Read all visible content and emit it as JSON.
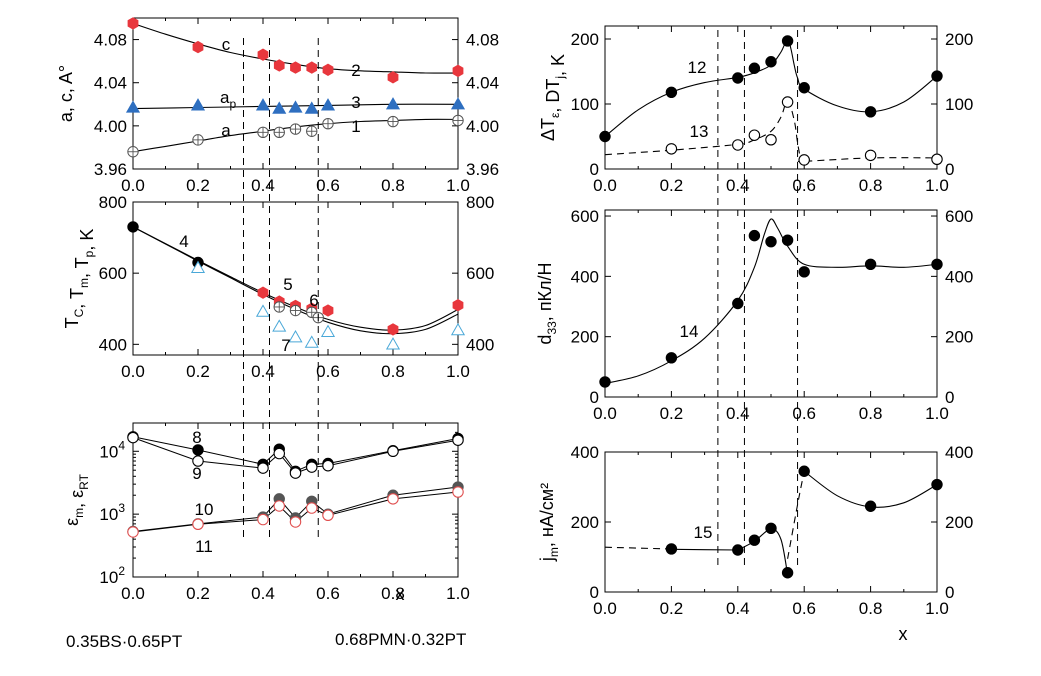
{
  "colors": {
    "red": "#e8373d",
    "blue": "#2e6fc0",
    "black": "#000000",
    "gray": "#555555",
    "hollow_red": "#e05050",
    "hollow_blue": "#4aa8d8"
  },
  "captions": {
    "left_composition": "0.35BS·0.65PT",
    "right_composition": "0.68PMN·0.32PT"
  },
  "boundaries": {
    "left_x": [
      0.34,
      0.42,
      0.57
    ],
    "right_x": [
      0.34,
      0.42,
      0.58
    ]
  },
  "chart_data": [
    {
      "id": "lattice",
      "type": "scatter",
      "ylabel": "a, c, A°",
      "xlim": [
        0,
        1
      ],
      "ylim": [
        3.96,
        4.1
      ],
      "x_ticks": [
        "0.0",
        "0.2",
        "0.4",
        "0.6",
        "0.8",
        "1.0"
      ],
      "y_ticks": [
        {
          "value": 3.96,
          "label": "3.96"
        },
        {
          "value": 4.0,
          "label": "4.00"
        },
        {
          "value": 4.04,
          "label": "4.04"
        },
        {
          "value": 4.08,
          "label": "4.08"
        }
      ],
      "series": [
        {
          "name": "c",
          "number": "2",
          "marker": "filled-hexagon",
          "color": "#e8373d",
          "x": [
            0.0,
            0.2,
            0.4,
            0.45,
            0.5,
            0.55,
            0.6,
            0.8,
            1.0
          ],
          "y": [
            4.095,
            4.073,
            4.066,
            4.056,
            4.054,
            4.054,
            4.052,
            4.045,
            4.051
          ],
          "curve_x": [
            0.0,
            0.1,
            0.2,
            0.3,
            0.4,
            0.5,
            0.6,
            0.7,
            0.8,
            0.9,
            1.0
          ],
          "curve_y": [
            4.095,
            4.085,
            4.076,
            4.068,
            4.062,
            4.057,
            4.053,
            4.051,
            4.05,
            4.049,
            4.049
          ]
        },
        {
          "name": "a_p",
          "label_main": "a",
          "label_sub": "p",
          "number": "3",
          "marker": "filled-triangle",
          "color": "#2e6fc0",
          "x": [
            0.0,
            0.2,
            0.4,
            0.45,
            0.5,
            0.55,
            0.6,
            0.8,
            1.0
          ],
          "y": [
            4.017,
            4.019,
            4.019,
            4.016,
            4.017,
            4.016,
            4.019,
            4.02,
            4.02
          ],
          "curve_x": [
            0.0,
            0.2,
            0.4,
            0.6,
            0.8,
            1.0
          ],
          "curve_y": [
            4.016,
            4.017,
            4.018,
            4.019,
            4.02,
            4.02
          ]
        },
        {
          "name": "a",
          "label_main": "a",
          "number": "1",
          "marker": "hollow-crossed-circle",
          "color": "#555555",
          "x": [
            0.0,
            0.2,
            0.4,
            0.45,
            0.5,
            0.55,
            0.6,
            0.8,
            1.0
          ],
          "y": [
            3.976,
            3.987,
            3.994,
            3.994,
            3.997,
            3.995,
            4.002,
            4.004,
            4.005
          ],
          "curve_x": [
            0.0,
            0.1,
            0.2,
            0.3,
            0.4,
            0.5,
            0.6,
            0.7,
            0.8,
            0.9,
            1.0
          ],
          "curve_y": [
            3.976,
            3.981,
            3.986,
            3.991,
            3.995,
            3.999,
            4.002,
            4.004,
            4.005,
            4.006,
            4.006
          ]
        }
      ]
    },
    {
      "id": "temperature",
      "type": "scatter",
      "ylabel": "T_C, T_m, T_p, K",
      "xlim": [
        0,
        1
      ],
      "ylim": [
        370,
        800
      ],
      "x_ticks": [
        "0.0",
        "0.2",
        "0.4",
        "0.6",
        "0.8",
        "1.0"
      ],
      "y_ticks": [
        {
          "value": 400,
          "label": "400"
        },
        {
          "value": 600,
          "label": "600"
        },
        {
          "value": 800,
          "label": "800"
        }
      ],
      "series": [
        {
          "name": "T_C",
          "number": "4",
          "marker": "filled-circle",
          "color": "#000000",
          "x": [
            0.0,
            0.2
          ],
          "y": [
            730,
            630
          ]
        },
        {
          "name": "T_m",
          "number": "5",
          "marker": "filled-hexagon",
          "color": "#e8373d",
          "x": [
            0.4,
            0.45,
            0.5,
            0.55,
            0.6,
            0.8,
            1.0
          ],
          "y": [
            545,
            520,
            508,
            500,
            495,
            442,
            510
          ]
        },
        {
          "name": "T_m(hollow)",
          "number": "6",
          "marker": "hollow-crossed-circle",
          "color": "#555555",
          "x": [
            0.45,
            0.5,
            0.55,
            0.57
          ],
          "y": [
            505,
            495,
            490,
            475
          ]
        },
        {
          "name": "T_p",
          "number": "7",
          "marker": "hollow-triangle",
          "color": "#4aa8d8",
          "x": [
            0.2,
            0.4,
            0.45,
            0.5,
            0.55,
            0.6,
            0.8,
            1.0
          ],
          "y": [
            615,
            492,
            450,
            420,
            405,
            435,
            400,
            440
          ]
        }
      ],
      "curves": [
        {
          "x": [
            0.0,
            0.1,
            0.2,
            0.3,
            0.4,
            0.5,
            0.6,
            0.7,
            0.8,
            0.9,
            1.0
          ],
          "y": [
            730,
            683,
            636,
            590,
            545,
            505,
            470,
            448,
            440,
            453,
            498
          ]
        },
        {
          "x": [
            0.0,
            0.1,
            0.2,
            0.3,
            0.4,
            0.5,
            0.6,
            0.7,
            0.8,
            0.9,
            1.0
          ],
          "y": [
            730,
            682,
            634,
            587,
            540,
            498,
            462,
            438,
            430,
            442,
            485
          ]
        }
      ]
    },
    {
      "id": "permittivity",
      "type": "scatter",
      "ylabel": "ε_m, ε_RT",
      "yscale": "log",
      "xlim": [
        0,
        1
      ],
      "ylim_log10": [
        2,
        4.45
      ],
      "x_ticks": [
        "0.0",
        "0.2",
        "0.4",
        "0.6",
        "0.8",
        "1.0"
      ],
      "y_ticks": [
        {
          "exp": 2,
          "label": "10"
        },
        {
          "exp": 3,
          "label": "10"
        },
        {
          "exp": 4,
          "label": "10"
        }
      ],
      "series": [
        {
          "name": "ε_m(1)",
          "number": "8",
          "marker": "filled-circle",
          "color": "#000000",
          "x": [
            0.0,
            0.2,
            0.4,
            0.45,
            0.5,
            0.55,
            0.6,
            0.8,
            1.0
          ],
          "y": [
            17000,
            10500,
            6200,
            10800,
            4800,
            6200,
            6400,
            10200,
            16000
          ]
        },
        {
          "name": "ε_RT(1)",
          "number": "9",
          "marker": "hollow-circle",
          "color": "#000000",
          "x": [
            0.0,
            0.2,
            0.4,
            0.45,
            0.5,
            0.55,
            0.6,
            0.8,
            1.0
          ],
          "y": [
            16500,
            7000,
            5400,
            9200,
            4500,
            5600,
            5900,
            10000,
            15000
          ]
        },
        {
          "name": "ε_m(2)",
          "number": "10",
          "marker": "filled-circle",
          "color": "#555555",
          "x": [
            0.0,
            0.2,
            0.4,
            0.45,
            0.5,
            0.55,
            0.6,
            0.8,
            1.0
          ],
          "y": [
            530,
            700,
            900,
            1750,
            870,
            1600,
            1000,
            2000,
            2700
          ]
        },
        {
          "name": "ε_RT(2)",
          "number": "11",
          "marker": "hollow-circle",
          "color": "#e05050",
          "x": [
            0.0,
            0.2,
            0.4,
            0.45,
            0.5,
            0.55,
            0.6,
            0.8,
            1.0
          ],
          "y": [
            520,
            690,
            820,
            1350,
            750,
            1250,
            960,
            1750,
            2250
          ]
        }
      ]
    },
    {
      "id": "delta_t",
      "type": "scatter",
      "ylabel": "ΔT_ε, DT_j, K",
      "xlim": [
        0,
        1
      ],
      "ylim": [
        0,
        220
      ],
      "x_ticks": [
        "0.0",
        "0.2",
        "0.4",
        "0.6",
        "0.8",
        "1.0"
      ],
      "y_ticks": [
        {
          "value": 0,
          "label": "0"
        },
        {
          "value": 100,
          "label": "100"
        },
        {
          "value": 200,
          "label": "200"
        }
      ],
      "series": [
        {
          "name": "ΔT_ε",
          "number": "12",
          "marker": "filled-circle",
          "color": "#000000",
          "x": [
            0.0,
            0.2,
            0.4,
            0.45,
            0.5,
            0.55,
            0.6,
            0.8,
            1.0
          ],
          "y": [
            50,
            118,
            140,
            155,
            165,
            197,
            125,
            88,
            143
          ],
          "curve_x": [
            0.0,
            0.1,
            0.2,
            0.3,
            0.4,
            0.45,
            0.5,
            0.53,
            0.55,
            0.56,
            0.57,
            0.58,
            0.6,
            0.7,
            0.8,
            0.9,
            1.0
          ],
          "curve_y": [
            50,
            91,
            118,
            133,
            141,
            148,
            160,
            180,
            200,
            185,
            160,
            140,
            123,
            97,
            88,
            103,
            143
          ]
        },
        {
          "name": "DT_j",
          "number": "13",
          "marker": "hollow-circle",
          "color": "#000000",
          "x": [
            0.2,
            0.4,
            0.45,
            0.5,
            0.55,
            0.6,
            0.8,
            1.0
          ],
          "y": [
            31,
            37,
            52,
            45,
            103,
            14,
            21,
            15
          ],
          "curve_x": [
            0.0,
            0.2,
            0.4,
            0.45,
            0.5,
            0.53,
            0.55,
            0.57,
            0.58,
            0.59,
            0.6,
            0.8,
            1.0
          ],
          "curve_y": [
            22,
            29,
            38,
            45,
            58,
            80,
            105,
            75,
            40,
            15,
            12,
            17,
            17
          ]
        }
      ]
    },
    {
      "id": "d33",
      "type": "scatter",
      "ylabel": "d33, пКл/Н",
      "xlim": [
        0,
        1
      ],
      "ylim": [
        0,
        620
      ],
      "x_ticks": [
        "0.0",
        "0.2",
        "0.4",
        "0.6",
        "0.8",
        "1.0"
      ],
      "y_ticks": [
        {
          "value": 0,
          "label": "0"
        },
        {
          "value": 200,
          "label": "200"
        },
        {
          "value": 400,
          "label": "400"
        },
        {
          "value": 600,
          "label": "600"
        }
      ],
      "series": [
        {
          "name": "d33",
          "number": "14",
          "marker": "filled-circle",
          "color": "#000000",
          "x": [
            0.0,
            0.2,
            0.4,
            0.45,
            0.5,
            0.55,
            0.6,
            0.8,
            1.0
          ],
          "y": [
            50,
            130,
            310,
            535,
            515,
            520,
            415,
            440,
            440
          ],
          "curve_x": [
            0.0,
            0.1,
            0.2,
            0.3,
            0.4,
            0.45,
            0.48,
            0.5,
            0.52,
            0.55,
            0.6,
            0.7,
            0.8,
            0.9,
            1.0
          ],
          "curve_y": [
            45,
            70,
            120,
            195,
            320,
            430,
            540,
            590,
            560,
            500,
            440,
            430,
            435,
            430,
            440
          ]
        }
      ]
    },
    {
      "id": "jm",
      "type": "scatter",
      "ylabel": "jm, нА/см²",
      "xlim": [
        0,
        1
      ],
      "ylim": [
        0,
        400
      ],
      "x_ticks": [
        "0.0",
        "0.2",
        "0.4",
        "0.6",
        "0.8",
        "1.0"
      ],
      "y_ticks": [
        {
          "value": 0,
          "label": "0"
        },
        {
          "value": 200,
          "label": "200"
        },
        {
          "value": 400,
          "label": "400"
        }
      ],
      "series": [
        {
          "name": "jm",
          "number": "15",
          "marker": "filled-circle",
          "color": "#000000",
          "x": [
            0.2,
            0.4,
            0.45,
            0.5,
            0.55,
            0.6,
            0.8,
            1.0
          ],
          "y": [
            123,
            120,
            148,
            182,
            55,
            345,
            245,
            307
          ]
        }
      ],
      "dashed_segments": [
        {
          "x": [
            0.0,
            0.2
          ],
          "y": [
            128,
            123
          ]
        },
        {
          "x": [
            0.55,
            0.58,
            0.6
          ],
          "y": [
            95,
            250,
            345
          ]
        }
      ],
      "solid_segments": [
        {
          "x": [
            0.2,
            0.4
          ],
          "y": [
            122,
            120
          ]
        },
        {
          "x": [
            0.4,
            0.45,
            0.5,
            0.53,
            0.55
          ],
          "y": [
            120,
            145,
            180,
            150,
            50
          ]
        },
        {
          "x": [
            0.6,
            0.7,
            0.8,
            0.9,
            1.0
          ],
          "y": [
            345,
            275,
            243,
            255,
            307
          ]
        }
      ]
    }
  ]
}
